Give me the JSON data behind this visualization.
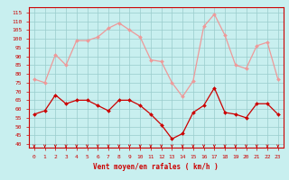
{
  "hours": [
    0,
    1,
    2,
    3,
    4,
    5,
    6,
    7,
    8,
    9,
    10,
    11,
    12,
    13,
    14,
    15,
    16,
    17,
    18,
    19,
    20,
    21,
    22,
    23
  ],
  "wind_avg": [
    57,
    59,
    68,
    63,
    65,
    65,
    62,
    59,
    65,
    65,
    62,
    57,
    51,
    43,
    46,
    58,
    62,
    72,
    58,
    57,
    55,
    63,
    63,
    57
  ],
  "wind_gust": [
    77,
    75,
    91,
    85,
    99,
    99,
    101,
    106,
    109,
    105,
    101,
    88,
    87,
    75,
    67,
    76,
    107,
    114,
    102,
    85,
    83,
    96,
    98,
    77
  ],
  "bg_color": "#c8efef",
  "grid_color": "#99cccc",
  "avg_color": "#cc0000",
  "gust_color": "#ee9999",
  "label_color": "#cc0000",
  "title": "Vent moyen/en rafales ( km/h )",
  "yticks": [
    40,
    45,
    50,
    55,
    60,
    65,
    70,
    75,
    80,
    85,
    90,
    95,
    100,
    105,
    110,
    115
  ],
  "ylim": [
    38,
    118
  ],
  "xlim": [
    -0.5,
    23.5
  ]
}
